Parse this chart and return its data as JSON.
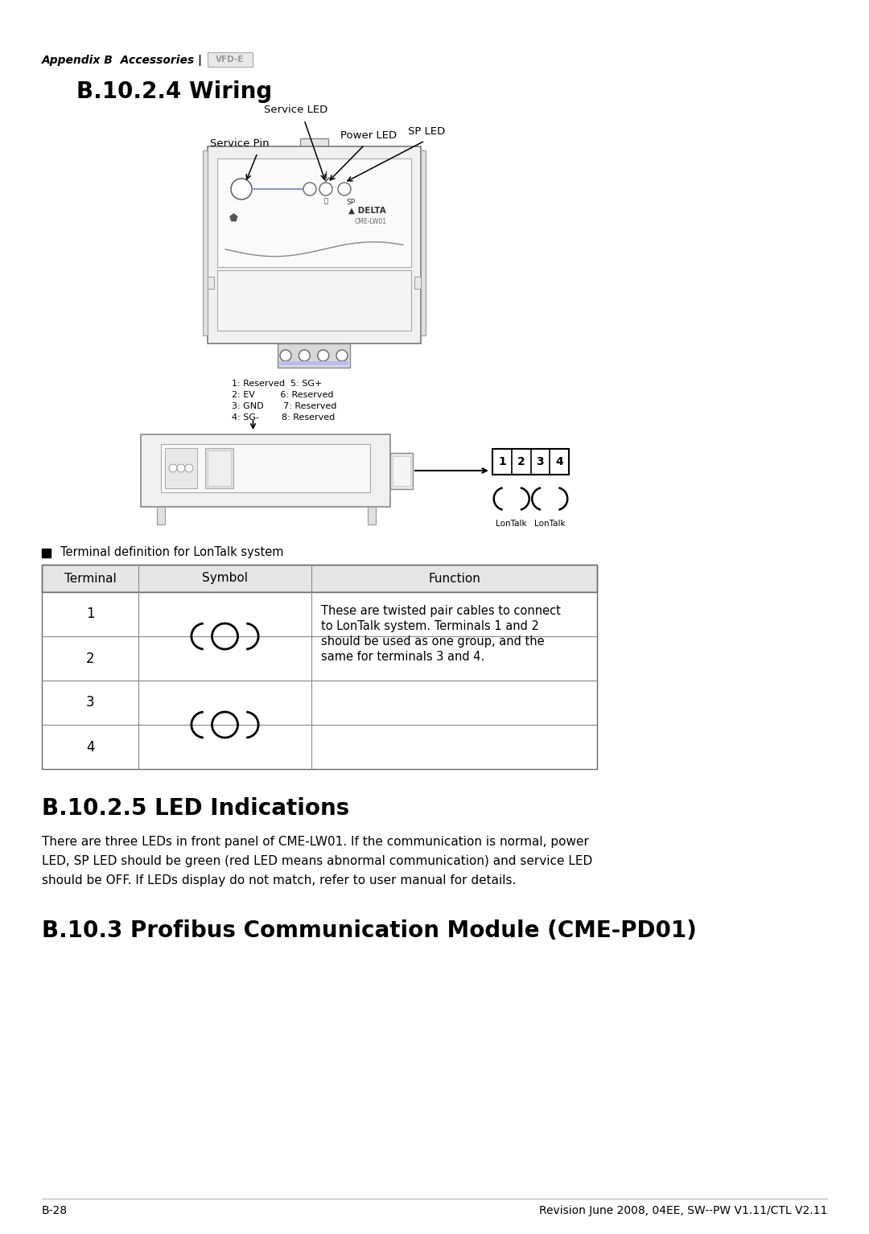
{
  "page_title": "Appendix B  Accessories |",
  "vfd_label": "VFD-E",
  "section_title": "B.10.2.4 Wiring",
  "section2_title": "B.10.2.5 LED Indications",
  "section3_title": "B.10.3 Profibus Communication Module (CME-PD01)",
  "led_text_lines": [
    "There are three LEDs in front panel of CME-LW01. If the communication is normal, power",
    "LED, SP LED should be green (red LED means abnormal communication) and service LED",
    "should be OFF. If LEDs display do not match, refer to user manual for details."
  ],
  "terminal_label": "Terminal definition for LonTalk system",
  "table_headers": [
    "Terminal",
    "Symbol",
    "Function"
  ],
  "table_rows": [
    "1",
    "2",
    "3",
    "4"
  ],
  "table_function_lines": [
    "These are twisted pair cables to connect",
    "to LonTalk system. Terminals 1 and 2",
    "should be used as one group, and the",
    "same for terminals 3 and 4."
  ],
  "pin_labels": [
    "1: Reserved  5: SG+",
    "2: EV         6: Reserved",
    "3: GND       7: Reserved",
    "4: SG-        8: Reserved"
  ],
  "footer_left": "B-28",
  "footer_right": "Revision June 2008, 04EE, SW--PW V1.11/CTL V2.11",
  "bg_color": "#ffffff",
  "text_color": "#000000",
  "diagram_bg": "#f2f2f2",
  "diagram_edge": "#888888",
  "label_font": 9.5,
  "body_font": 11
}
